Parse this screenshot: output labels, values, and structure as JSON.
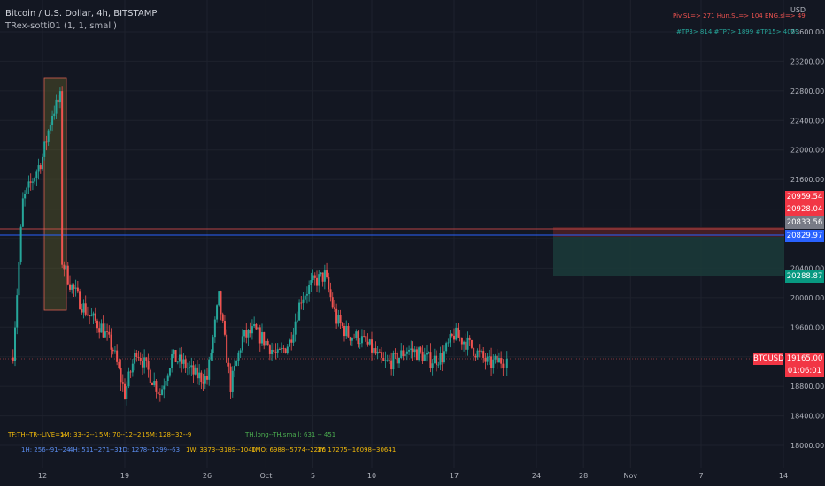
{
  "header": {
    "title": "Bitcoin / U.S. Dollar, 4h, BITSTAMP",
    "indicator": "TRex-sotti01 (1, 1, small)"
  },
  "stats_top": {
    "line1": "Piv.SL=> 271   Hun.SL=> 104   ENG.sl=> 49",
    "line2": "#TP3> 814   #TP7> 1899   #TP15> 4069"
  },
  "stats_bottom": {
    "row1_a": "TF:TH--TR--LIVE=>",
    "row1_b": "1M: 33--2--1",
    "row1_c": "5M: 70--12--2",
    "row1_d": "15M: 128--32--9",
    "row1_e": "TH.long--TH.small: 631 -- 451",
    "row2_a": "1H: 256--91--24",
    "row2_b": "4H: 511--271--32",
    "row2_c": "1D: 1278--1299--63",
    "row2_d": "1W: 3373--3189--1040",
    "row2_e": "1MO: 6988--5774--2286",
    "row2_f": "1Y: 17275--16098--30641"
  },
  "price_labels": {
    "p1": "20959.54",
    "p2": "20928.04",
    "p3": "20833.56",
    "p4": "20829.97",
    "p5": "20288.87",
    "symbol": "BTCUSD",
    "last": "19165.00",
    "countdown": "01:06:01"
  },
  "colors": {
    "background": "#131722",
    "up": "#26a69a",
    "down": "#ef5350",
    "red_line": "#ef5350",
    "blue_line": "#2962ff",
    "tp_zone": "#1b3b3a",
    "sl_zone": "#4a1f25"
  },
  "chart_data": {
    "type": "candlestick",
    "currency": "USD",
    "y_axis_ticks": [
      18000,
      18400,
      18800,
      19200,
      19600,
      20000,
      20400,
      20800,
      21200,
      21600,
      22000,
      22400,
      22800,
      23200,
      23600
    ],
    "ylim": [
      17800,
      23950
    ],
    "x_axis_labels": [
      "12",
      "19",
      "26",
      "Oct",
      "5",
      "10",
      "17",
      "24",
      "28",
      "Nov",
      "7",
      "14"
    ],
    "x_axis_dates": [
      "2022-09-12",
      "2022-09-19",
      "2022-09-26",
      "2022-10-01",
      "2022-10-05",
      "2022-10-10",
      "2022-10-17",
      "2022-10-24",
      "2022-10-28",
      "2022-11-01",
      "2022-11-07",
      "2022-11-14"
    ],
    "price_levels": [
      {
        "label": "20959.54",
        "value": 20959.54
      },
      {
        "label": "20928.04",
        "value": 20928.04
      },
      {
        "label": "20833.56",
        "value": 20833.56
      },
      {
        "label": "20829.97",
        "value": 20829.97
      },
      {
        "label": "20288.87",
        "value": 20288.87
      },
      {
        "label": "19165.00",
        "value": 19165.0
      }
    ],
    "close_path": [
      {
        "date": "2022-09-09T12:00",
        "close": 19250
      },
      {
        "date": "2022-09-10T08:00",
        "close": 21300
      },
      {
        "date": "2022-09-11T04:00",
        "close": 21600
      },
      {
        "date": "2022-09-12T00:00",
        "close": 21900
      },
      {
        "date": "2022-09-12T20:00",
        "close": 22500
      },
      {
        "date": "2022-09-13T12:00",
        "close": 22700
      },
      {
        "date": "2022-09-13T16:00",
        "close": 20500
      },
      {
        "date": "2022-09-14T08:00",
        "close": 20200
      },
      {
        "date": "2022-09-15T04:00",
        "close": 19950
      },
      {
        "date": "2022-09-16T00:00",
        "close": 19750
      },
      {
        "date": "2022-09-17T00:00",
        "close": 19600
      },
      {
        "date": "2022-09-18T00:00",
        "close": 19300
      },
      {
        "date": "2022-09-19T00:00",
        "close": 18700
      },
      {
        "date": "2022-09-20T00:00",
        "close": 19300
      },
      {
        "date": "2022-09-21T00:00",
        "close": 19000
      },
      {
        "date": "2022-09-22T00:00",
        "close": 18700
      },
      {
        "date": "2022-09-23T00:00",
        "close": 19200
      },
      {
        "date": "2022-09-24T00:00",
        "close": 19100
      },
      {
        "date": "2022-09-25T00:00",
        "close": 18950
      },
      {
        "date": "2022-09-26T00:00",
        "close": 18900
      },
      {
        "date": "2022-09-27T00:00",
        "close": 20000
      },
      {
        "date": "2022-09-28T00:00",
        "close": 18800
      },
      {
        "date": "2022-09-29T00:00",
        "close": 19450
      },
      {
        "date": "2022-09-30T00:00",
        "close": 19550
      },
      {
        "date": "2022-10-01T00:00",
        "close": 19400
      },
      {
        "date": "2022-10-02T00:00",
        "close": 19200
      },
      {
        "date": "2022-10-03T00:00",
        "close": 19400
      },
      {
        "date": "2022-10-04T00:00",
        "close": 20000
      },
      {
        "date": "2022-10-05T00:00",
        "close": 20200
      },
      {
        "date": "2022-10-06T00:00",
        "close": 20300
      },
      {
        "date": "2022-10-07T00:00",
        "close": 19700
      },
      {
        "date": "2022-10-08T00:00",
        "close": 19500
      },
      {
        "date": "2022-10-09T00:00",
        "close": 19450
      },
      {
        "date": "2022-10-10T00:00",
        "close": 19300
      },
      {
        "date": "2022-10-11T00:00",
        "close": 19100
      },
      {
        "date": "2022-10-12T00:00",
        "close": 19150
      },
      {
        "date": "2022-10-13T00:00",
        "close": 19300
      },
      {
        "date": "2022-10-14T00:00",
        "close": 19250
      },
      {
        "date": "2022-10-15T00:00",
        "close": 19150
      },
      {
        "date": "2022-10-16T00:00",
        "close": 19200
      },
      {
        "date": "2022-10-17T00:00",
        "close": 19500
      },
      {
        "date": "2022-10-18T00:00",
        "close": 19400
      },
      {
        "date": "2022-10-19T00:00",
        "close": 19250
      },
      {
        "date": "2022-10-20T00:00",
        "close": 19100
      },
      {
        "date": "2022-10-21T00:00",
        "close": 19150
      },
      {
        "date": "2022-10-21T12:00",
        "close": 19165
      }
    ]
  }
}
